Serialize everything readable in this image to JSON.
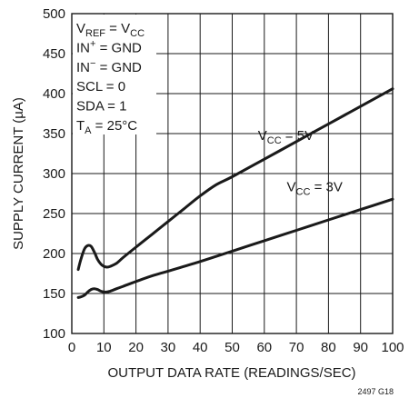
{
  "chart_data": {
    "type": "line",
    "xlabel": "OUTPUT DATA RATE (READINGS/SEC)",
    "ylabel": "SUPPLY CURRENT (µA)",
    "xlim": [
      0,
      100
    ],
    "ylim": [
      100,
      500
    ],
    "x_ticks": [
      0,
      10,
      20,
      30,
      40,
      50,
      60,
      70,
      80,
      90,
      100
    ],
    "y_ticks": [
      100,
      150,
      200,
      250,
      300,
      350,
      400,
      450,
      500
    ],
    "grid": true,
    "conditions": [
      {
        "main": "V",
        "sub": "REF",
        "tail": " = V",
        "sub2": "CC"
      },
      {
        "main": "IN",
        "sup": "+",
        "tail": " = GND"
      },
      {
        "main": "IN",
        "sup": "−",
        "tail": " = GND"
      },
      {
        "main": "SCL = 0"
      },
      {
        "main": "SDA = 1"
      },
      {
        "main": "T",
        "sub": "A",
        "tail": " = 25°C"
      }
    ],
    "series": [
      {
        "label_main": "V",
        "label_sub": "CC",
        "label_tail": " = 5V",
        "x": [
          2,
          3,
          4,
          5,
          6,
          7,
          8,
          9,
          10,
          11,
          12,
          14,
          16,
          20,
          25,
          30,
          35,
          40,
          45,
          50,
          60,
          70,
          80,
          90,
          100
        ],
        "values": [
          180,
          195,
          206,
          210,
          209,
          202,
          193,
          187,
          184,
          183,
          184,
          188,
          195,
          208,
          224,
          240,
          256,
          272,
          286,
          296,
          318,
          340,
          362,
          384,
          406
        ]
      },
      {
        "label_main": "V",
        "label_sub": "CC",
        "label_tail": " = 3V",
        "x": [
          2,
          3,
          4,
          5,
          6,
          7,
          8,
          9,
          10,
          11,
          12,
          14,
          16,
          20,
          25,
          30,
          40,
          50,
          60,
          70,
          80,
          90,
          100
        ],
        "values": [
          145,
          146,
          148,
          152,
          155,
          156,
          155,
          153,
          152,
          152,
          153,
          156,
          159,
          165,
          172,
          178,
          190,
          203,
          216,
          229,
          242,
          255,
          268
        ]
      }
    ],
    "figure_number": "2497 G18"
  }
}
